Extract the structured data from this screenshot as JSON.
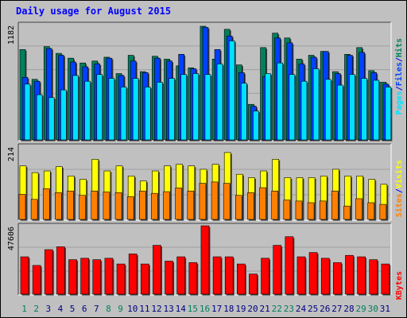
{
  "title": "Daily usage for August 2015",
  "colors": {
    "background": "#c0c0c0",
    "title": "#0000ff",
    "hits": "#00805c",
    "files": "#0040ff",
    "pages": "#00e0ff",
    "visits": "#ffff00",
    "sites": "#ff8000",
    "kbytes": "#ff0000",
    "weekend_label": "#00805c",
    "weekday_label": "#000080",
    "separator": "#0000ff"
  },
  "chart_data": [
    {
      "type": "bar",
      "name": "hits-files-pages",
      "categories": [
        "1",
        "2",
        "3",
        "4",
        "5",
        "6",
        "7",
        "8",
        "9",
        "10",
        "11",
        "12",
        "13",
        "14",
        "15",
        "16",
        "17",
        "18",
        "19",
        "20",
        "21",
        "22",
        "23",
        "24",
        "25",
        "26",
        "27",
        "28",
        "29",
        "30",
        "31"
      ],
      "ymax_label": "1182",
      "ymax": 1182,
      "legend": [
        "Pages",
        "Files",
        "Hits"
      ],
      "series": [
        {
          "name": "Hits",
          "values": [
            940,
            630,
            970,
            900,
            850,
            800,
            820,
            860,
            690,
            880,
            710,
            870,
            840,
            770,
            750,
            1182,
            840,
            1150,
            780,
            370,
            960,
            1110,
            1060,
            840,
            880,
            920,
            710,
            890,
            960,
            720,
            600
          ]
        },
        {
          "name": "Files",
          "values": [
            650,
            610,
            950,
            880,
            810,
            760,
            790,
            850,
            670,
            820,
            700,
            850,
            820,
            890,
            740,
            1170,
            940,
            1080,
            700,
            350,
            660,
            1060,
            1010,
            790,
            860,
            920,
            690,
            880,
            910,
            700,
            580
          ]
        },
        {
          "name": "Pages",
          "values": [
            580,
            470,
            440,
            520,
            670,
            610,
            680,
            640,
            550,
            640,
            550,
            600,
            640,
            680,
            690,
            680,
            790,
            1030,
            590,
            300,
            690,
            800,
            680,
            610,
            740,
            630,
            570,
            680,
            640,
            620,
            550
          ]
        }
      ]
    },
    {
      "type": "bar",
      "name": "visits-sites",
      "categories": [
        "1",
        "2",
        "3",
        "4",
        "5",
        "6",
        "7",
        "8",
        "9",
        "10",
        "11",
        "12",
        "13",
        "14",
        "15",
        "16",
        "17",
        "18",
        "19",
        "20",
        "21",
        "22",
        "23",
        "24",
        "25",
        "26",
        "27",
        "28",
        "29",
        "30",
        "31"
      ],
      "ymax_label": "214",
      "ymax": 214,
      "legend": [
        "Sites",
        "Visits"
      ],
      "series": [
        {
          "name": "Visits",
          "values": [
            160,
            140,
            145,
            158,
            130,
            120,
            180,
            145,
            160,
            130,
            115,
            145,
            160,
            165,
            160,
            150,
            165,
            200,
            135,
            125,
            145,
            180,
            125,
            125,
            125,
            130,
            150,
            130,
            130,
            120,
            105
          ]
        },
        {
          "name": "Sites",
          "values": [
            75,
            60,
            92,
            80,
            85,
            72,
            85,
            82,
            80,
            68,
            85,
            78,
            83,
            94,
            85,
            108,
            112,
            108,
            72,
            80,
            95,
            85,
            58,
            55,
            50,
            55,
            85,
            40,
            62,
            50,
            45
          ]
        }
      ]
    },
    {
      "type": "bar",
      "name": "kbytes",
      "categories": [
        "1",
        "2",
        "3",
        "4",
        "5",
        "6",
        "7",
        "8",
        "9",
        "10",
        "11",
        "12",
        "13",
        "14",
        "15",
        "16",
        "17",
        "18",
        "19",
        "20",
        "21",
        "22",
        "23",
        "24",
        "25",
        "26",
        "27",
        "28",
        "29",
        "30",
        "31"
      ],
      "ymax_label": "47606",
      "ymax": 47606,
      "legend": [
        "KBytes"
      ],
      "series": [
        {
          "name": "KBytes",
          "values": [
            26000,
            20000,
            31000,
            33000,
            24000,
            25000,
            24000,
            25000,
            21000,
            28000,
            21000,
            34000,
            23000,
            26000,
            22000,
            48000,
            26000,
            26000,
            21000,
            14000,
            25000,
            34000,
            40000,
            26000,
            29000,
            25000,
            22000,
            27000,
            26000,
            24000,
            21000
          ]
        }
      ]
    }
  ]
}
